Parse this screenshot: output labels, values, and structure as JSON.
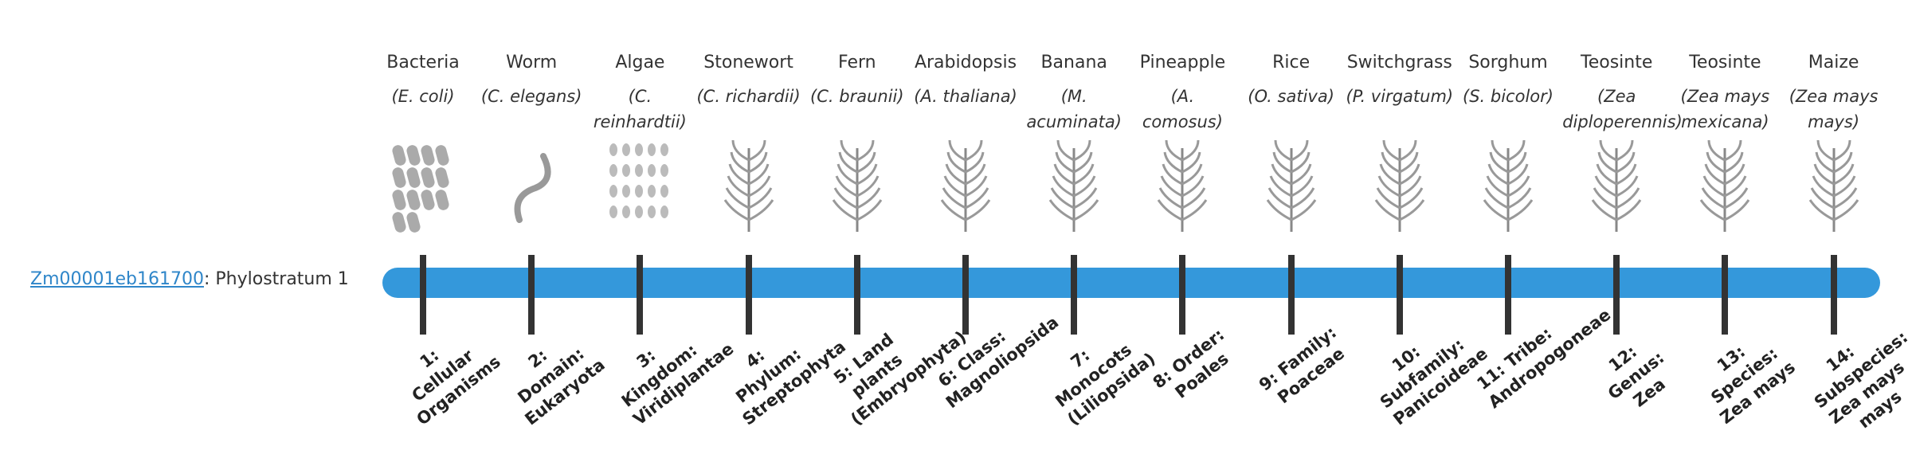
{
  "gene": {
    "id": "Zm00001eb161700",
    "label": ": Phylostratum 1"
  },
  "strata": [
    {
      "common": "Bacteria",
      "scientific": "(E. coli)",
      "rank": "1: Cellular Organisms"
    },
    {
      "common": "Worm",
      "scientific": "(C. elegans)",
      "rank": "2: Domain: Eukaryota"
    },
    {
      "common": "Algae",
      "scientific": "(C. reinhardtii)",
      "rank": "3: Kingdom: Viridiplantae"
    },
    {
      "common": "Stonewort",
      "scientific": "(C. richardii)",
      "rank": "4: Phylum: Streptophyta"
    },
    {
      "common": "Fern",
      "scientific": "(C. braunii)",
      "rank": "5: Land plants (Embryophyta)"
    },
    {
      "common": "Arabidopsis",
      "scientific": "(A. thaliana)",
      "rank": "6: Class: Magnoliopsida"
    },
    {
      "common": "Banana",
      "scientific": "(M. acuminata)",
      "rank": "7: Monocots (Liliopsida)"
    },
    {
      "common": "Pineapple",
      "scientific": "(A. comosus)",
      "rank": "8: Order: Poales"
    },
    {
      "common": "Rice",
      "scientific": "(O. sativa)",
      "rank": "9: Family: Poaceae"
    },
    {
      "common": "Switchgrass",
      "scientific": "(P. virgatum)",
      "rank": "10: Subfamily: Panicoideae"
    },
    {
      "common": "Sorghum",
      "scientific": "(S. bicolor)",
      "rank": "11: Tribe: Andropogoneae"
    },
    {
      "common": "Teosinte",
      "scientific": "(Zea diploperennis)",
      "rank": "12: Genus: Zea"
    },
    {
      "common": "Teosinte",
      "scientific": "(Zea mays mexicana)",
      "rank": "13: Species: Zea mays"
    },
    {
      "common": "Maize",
      "scientific": "(Zea mays mays)",
      "rank": "14: Subspecies: Zea mays mays"
    }
  ]
}
